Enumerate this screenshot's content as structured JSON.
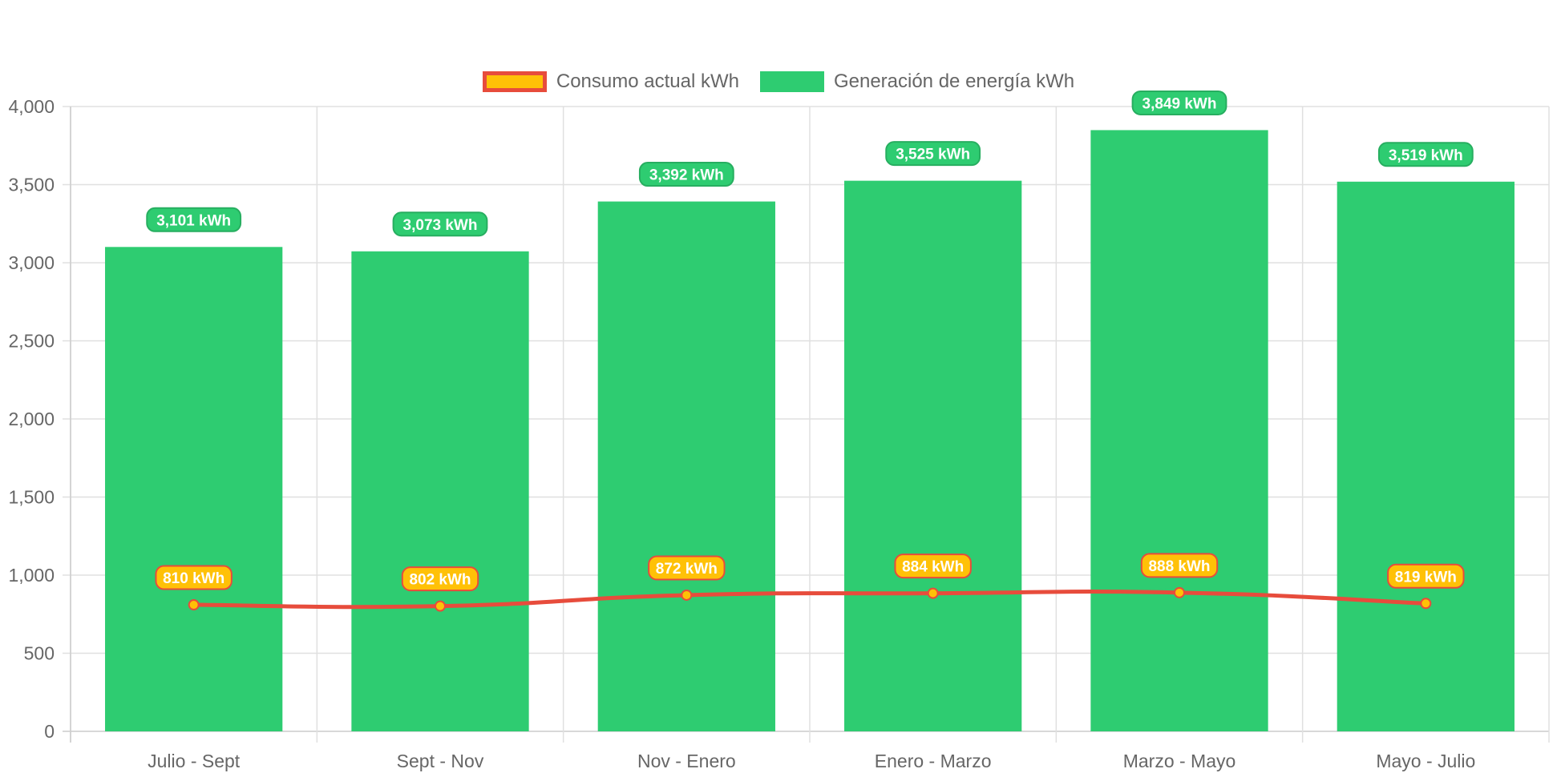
{
  "chart_data": {
    "type": "bar",
    "categories": [
      "Julio - Sept",
      "Sept - Nov",
      "Nov - Enero",
      "Enero - Marzo",
      "Marzo - Mayo",
      "Mayo - Julio"
    ],
    "series": [
      {
        "name": "Consumo actual kWh",
        "type": "line",
        "values": [
          810,
          802,
          872,
          884,
          888,
          819
        ],
        "labels": [
          "810 kWh",
          "802 kWh",
          "872 kWh",
          "884 kWh",
          "888 kWh",
          "819 kWh"
        ],
        "color": "#FFC107",
        "border_color": "#E74C3C"
      },
      {
        "name": "Generación de energía kWh",
        "type": "bar",
        "values": [
          3101,
          3073,
          3392,
          3525,
          3849,
          3519
        ],
        "labels": [
          "3,101 kWh",
          "3,073 kWh",
          "3,392 kWh",
          "3,525 kWh",
          "3,849 kWh",
          "3,519 kWh"
        ],
        "color": "#2ECC71",
        "border_color": "#27AE60"
      }
    ],
    "ylim": [
      0,
      4000
    ],
    "yticks": [
      "0",
      "500",
      "1,000",
      "1,500",
      "2,000",
      "2,500",
      "3,000",
      "3,500",
      "4,000"
    ],
    "grid": true,
    "legend": "top-center"
  }
}
